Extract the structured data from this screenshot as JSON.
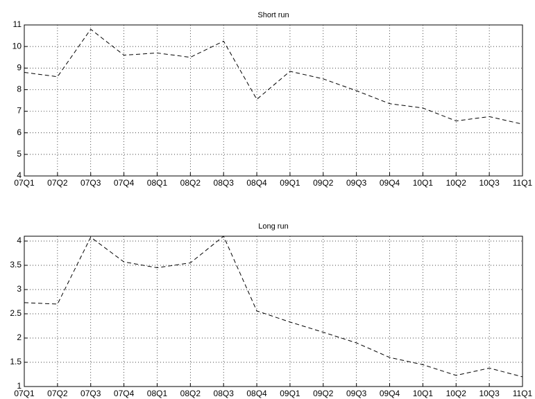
{
  "chart_data": [
    {
      "type": "line",
      "title": "Short run",
      "categories": [
        "07Q1",
        "07Q2",
        "07Q3",
        "07Q4",
        "08Q1",
        "08Q2",
        "08Q3",
        "08Q4",
        "09Q1",
        "09Q2",
        "09Q3",
        "09Q4",
        "10Q1",
        "10Q2",
        "10Q3",
        "11Q1"
      ],
      "series": [
        {
          "color": "#000000",
          "values": [
            8.8,
            8.6,
            10.8,
            9.6,
            9.7,
            9.5,
            10.25,
            7.55,
            8.85,
            8.5,
            7.95,
            7.35,
            7.15,
            6.55,
            6.75,
            6.4
          ]
        }
      ],
      "ylim": [
        4,
        11
      ],
      "yticks": [
        4,
        5,
        6,
        7,
        8,
        9,
        10,
        11
      ],
      "grid": true
    },
    {
      "type": "line",
      "title": "Long run",
      "categories": [
        "07Q1",
        "07Q2",
        "07Q3",
        "07Q4",
        "08Q1",
        "08Q2",
        "08Q3",
        "08Q4",
        "09Q1",
        "09Q2",
        "09Q3",
        "09Q4",
        "10Q1",
        "10Q2",
        "10Q3",
        "11Q1"
      ],
      "series": [
        {
          "color": "#000000",
          "values": [
            2.73,
            2.7,
            4.08,
            3.57,
            3.45,
            3.55,
            4.1,
            2.56,
            2.33,
            2.12,
            1.9,
            1.6,
            1.45,
            1.23,
            1.38,
            1.2
          ]
        }
      ],
      "ylim": [
        1,
        4.1
      ],
      "yticks": [
        1,
        1.5,
        2,
        2.5,
        3,
        3.5,
        4
      ],
      "grid": true
    }
  ]
}
